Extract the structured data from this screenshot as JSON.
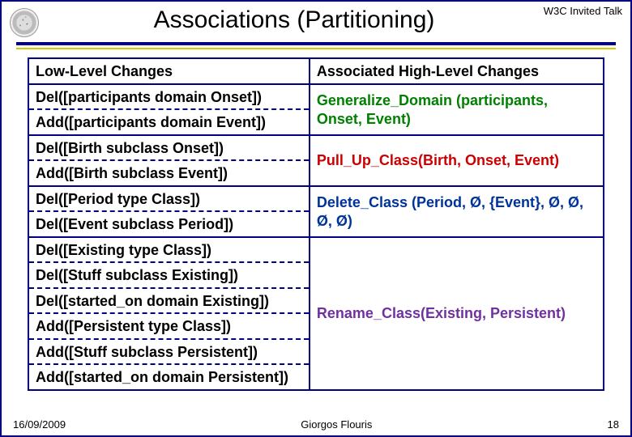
{
  "corner_label": "W3C Invited Talk",
  "title": "Associations (Partitioning)",
  "colors": {
    "border": "#000080",
    "accent_rule": "#cccc00",
    "green": "#008000",
    "red": "#cc0000",
    "navy": "#003399",
    "purple": "#7030a0",
    "background": "#ffffff"
  },
  "table": {
    "header": {
      "left": "Low-Level Changes",
      "right": "Associated High-Level Changes"
    },
    "groups": [
      {
        "right": "Generalize_Domain (participants, Onset, Event)",
        "right_color": "green",
        "left_rows": [
          "Del([participants domain Onset])",
          "Add([participants domain Event])"
        ]
      },
      {
        "right": "Pull_Up_Class(Birth, Onset, Event)",
        "right_color": "red",
        "left_rows": [
          "Del([Birth subclass Onset])",
          "Add([Birth subclass Event])"
        ]
      },
      {
        "right": "Delete_Class (Period, Ø, {Event}, Ø, Ø, Ø, Ø)",
        "right_color": "navy",
        "left_rows": [
          "Del([Period type Class])",
          "Del([Event subclass Period])"
        ]
      },
      {
        "right": "Rename_Class(Existing, Persistent)",
        "right_color": "purple",
        "left_rows": [
          "Del([Existing type Class])",
          "Del([Stuff subclass Existing])",
          "Del([started_on domain Existing])",
          "Add([Persistent type Class])",
          "Add([Stuff subclass Persistent])",
          "Add([started_on domain Persistent])"
        ]
      }
    ]
  },
  "footer": {
    "date": "16/09/2009",
    "author": "Giorgos Flouris",
    "page": "18"
  }
}
